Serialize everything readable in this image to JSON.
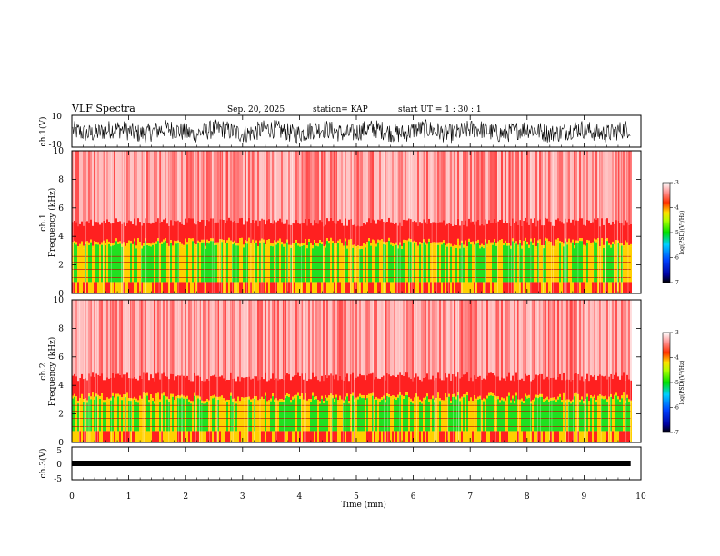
{
  "header": {
    "title": "VLF Spectra",
    "date": "Sep. 20, 2025",
    "station": "station= KAP",
    "start": "start  UT =   1 : 30 : 1"
  },
  "colors": {
    "spec_low": "#ffffff",
    "spec_mid": "#ff2020",
    "spec_band": "#ffd000",
    "spec_green": "#20e020",
    "line": "#000000"
  },
  "chart_data": [
    {
      "type": "line",
      "name": "ch1-waveform",
      "ylabel": "ch.1(V)",
      "ylim": [
        -10,
        10
      ],
      "yticks": [
        "10",
        "-10"
      ],
      "xlim": [
        0,
        10
      ],
      "description_values": "noisy waveform mostly between -5 and 5 V over 0-9.8 min"
    },
    {
      "type": "heatmap",
      "name": "ch1-spectrogram",
      "ylabel_line1": "ch.1",
      "ylabel_line2": "Frequency (kHz)",
      "ylim": [
        0,
        10
      ],
      "yticks": [
        "0",
        "2",
        "4",
        "6",
        "8",
        "10"
      ],
      "xlim": [
        0,
        10
      ],
      "data_end_min": 9.82,
      "bands": [
        {
          "from_khz": 0,
          "to_khz": 0.5,
          "level": "mixed"
        },
        {
          "from_khz": 0.8,
          "to_khz": 3.6,
          "level": "green-yellow"
        },
        {
          "from_khz": 3.6,
          "to_khz": 5.0,
          "level": "red"
        },
        {
          "from_khz": 5.0,
          "to_khz": 10,
          "level": "red-white speckle"
        }
      ],
      "colorbar": {
        "label": "log(PSD)(V²/Hz)",
        "ticks": [
          "-3",
          "-4",
          "-5",
          "-6",
          "-7"
        ],
        "range": [
          -7,
          -3
        ]
      }
    },
    {
      "type": "heatmap",
      "name": "ch2-spectrogram",
      "ylabel_line1": "ch.2",
      "ylabel_line2": "Frequency (kHz)",
      "ylim": [
        0,
        10
      ],
      "yticks": [
        "0",
        "2",
        "4",
        "6",
        "8",
        "10"
      ],
      "xlim": [
        0,
        10
      ],
      "data_end_min": 9.82,
      "bands": [
        {
          "from_khz": 0,
          "to_khz": 0.5,
          "level": "mixed"
        },
        {
          "from_khz": 0.8,
          "to_khz": 3.2,
          "level": "green-yellow"
        },
        {
          "from_khz": 3.2,
          "to_khz": 4.6,
          "level": "red"
        },
        {
          "from_khz": 4.6,
          "to_khz": 10,
          "level": "red-white speckle"
        }
      ],
      "colorbar": {
        "label": "log(PSD)(V²/Hz)",
        "ticks": [
          "-3",
          "-4",
          "-5",
          "-6",
          "-7"
        ],
        "range": [
          -7,
          -3
        ]
      }
    },
    {
      "type": "line",
      "name": "ch3-waveform",
      "ylabel": "ch.3(V)",
      "ylim": [
        -5,
        5
      ],
      "yticks": [
        "5",
        "0",
        "-5"
      ],
      "xlim": [
        0,
        10
      ],
      "description_values": "flat thick trace near -0.5 V"
    }
  ],
  "xaxis": {
    "label": "Time (min)",
    "ticks": [
      "0",
      "1",
      "2",
      "3",
      "4",
      "5",
      "6",
      "7",
      "8",
      "9",
      "10"
    ]
  }
}
